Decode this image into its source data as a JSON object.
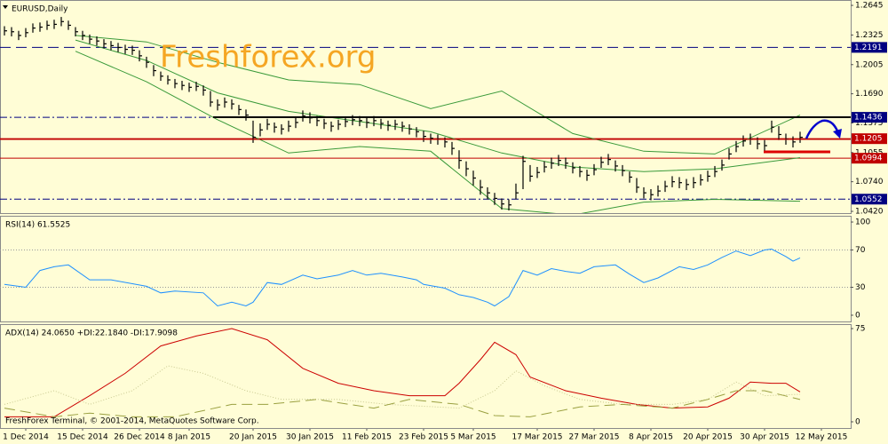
{
  "chart_data": [
    {
      "type": "ohlc",
      "title": "EURUSD,Daily",
      "watermark": "Freshforex.org",
      "xlim": [
        -0.625,
        119.125
      ],
      "xticks": [
        {
          "value": 3,
          "label": "1 Dec 2014"
        },
        {
          "value": 11,
          "label": "15 Dec 2014"
        },
        {
          "value": 19,
          "label": "26 Dec 2014"
        },
        {
          "value": 26,
          "label": "8 Jan 2015"
        },
        {
          "value": 35,
          "label": "20 Jan 2015"
        },
        {
          "value": 43,
          "label": "30 Jan 2015"
        },
        {
          "value": 51,
          "label": "11 Feb 2015"
        },
        {
          "value": 59,
          "label": "23 Feb 2015"
        },
        {
          "value": 66,
          "label": "5 Mar 2015"
        },
        {
          "value": 75,
          "label": "17 Mar 2015"
        },
        {
          "value": 83,
          "label": "27 Mar 2015"
        },
        {
          "value": 91,
          "label": "8 Apr 2015"
        },
        {
          "value": 99,
          "label": "20 Apr 2015"
        },
        {
          "value": 107,
          "label": "30 Apr 2015"
        },
        {
          "value": 115,
          "label": "12 May 2015"
        }
      ],
      "ylim": [
        1.0401,
        1.2703
      ],
      "yticks": [
        1.2645,
        1.2325,
        1.2005,
        {
          "value": 1.169,
          "label": "1.1690"
        },
        1.1375,
        1.1055,
        {
          "value": 1.074,
          "label": "1.0740"
        },
        {
          "value": 1.042,
          "label": "1.0420"
        }
      ],
      "color": "#000000",
      "x": [
        0,
        1,
        2,
        3,
        4,
        5,
        6,
        7,
        8,
        9,
        10,
        11,
        12,
        13,
        14,
        15,
        16,
        17,
        18,
        19,
        20,
        21,
        22,
        23,
        24,
        25,
        26,
        27,
        28,
        29,
        30,
        31,
        32,
        33,
        34,
        35,
        36,
        37,
        38,
        39,
        40,
        41,
        42,
        43,
        44,
        45,
        46,
        47,
        48,
        49,
        50,
        51,
        52,
        53,
        54,
        55,
        56,
        57,
        58,
        59,
        60,
        61,
        62,
        63,
        64,
        65,
        66,
        67,
        68,
        69,
        70,
        71,
        72,
        73,
        74,
        75,
        76,
        77,
        78,
        79,
        80,
        81,
        82,
        83,
        84,
        85,
        86,
        87,
        88,
        89,
        90,
        91,
        92,
        93,
        94,
        95,
        96,
        97,
        98,
        99,
        100,
        101,
        102,
        103,
        104,
        105,
        106,
        107,
        108,
        109,
        110,
        111,
        112
      ],
      "high": [
        1.242,
        1.241,
        1.237,
        1.24,
        1.245,
        1.246,
        1.248,
        1.249,
        1.252,
        1.248,
        1.241,
        1.237,
        1.233,
        1.231,
        1.228,
        1.226,
        1.224,
        1.222,
        1.221,
        1.216,
        1.209,
        1.2,
        1.193,
        1.189,
        1.185,
        1.183,
        1.181,
        1.182,
        1.178,
        1.172,
        1.163,
        1.165,
        1.163,
        1.157,
        1.152,
        1.14,
        1.137,
        1.142,
        1.138,
        1.136,
        1.14,
        1.143,
        1.151,
        1.149,
        1.145,
        1.142,
        1.139,
        1.141,
        1.144,
        1.146,
        1.145,
        1.143,
        1.145,
        1.142,
        1.14,
        1.141,
        1.139,
        1.136,
        1.133,
        1.129,
        1.126,
        1.125,
        1.122,
        1.117,
        1.108,
        1.096,
        1.086,
        1.076,
        1.068,
        1.062,
        1.056,
        1.055,
        1.072,
        1.102,
        1.092,
        1.09,
        1.096,
        1.1,
        1.103,
        1.1,
        1.095,
        1.091,
        1.087,
        1.093,
        1.101,
        1.104,
        1.097,
        1.092,
        1.085,
        1.078,
        1.068,
        1.066,
        1.07,
        1.075,
        1.08,
        1.079,
        1.077,
        1.079,
        1.082,
        1.086,
        1.091,
        1.098,
        1.11,
        1.118,
        1.124,
        1.126,
        1.122,
        1.119,
        1.14,
        1.134,
        1.126,
        1.123,
        1.128
      ],
      "low": [
        1.232,
        1.231,
        1.227,
        1.23,
        1.235,
        1.236,
        1.238,
        1.239,
        1.242,
        1.238,
        1.231,
        1.227,
        1.223,
        1.221,
        1.218,
        1.216,
        1.214,
        1.212,
        1.211,
        1.204,
        1.197,
        1.188,
        1.183,
        1.179,
        1.175,
        1.173,
        1.171,
        1.172,
        1.167,
        1.155,
        1.151,
        1.154,
        1.152,
        1.146,
        1.14,
        1.116,
        1.123,
        1.13,
        1.127,
        1.125,
        1.128,
        1.132,
        1.139,
        1.137,
        1.134,
        1.131,
        1.128,
        1.13,
        1.133,
        1.135,
        1.134,
        1.132,
        1.134,
        1.131,
        1.129,
        1.13,
        1.128,
        1.125,
        1.122,
        1.117,
        1.115,
        1.114,
        1.111,
        1.103,
        1.088,
        1.08,
        1.07,
        1.06,
        1.055,
        1.049,
        1.044,
        1.043,
        1.055,
        1.066,
        1.074,
        1.078,
        1.084,
        1.088,
        1.091,
        1.088,
        1.083,
        1.079,
        1.075,
        1.081,
        1.089,
        1.092,
        1.085,
        1.08,
        1.073,
        1.062,
        1.056,
        1.054,
        1.058,
        1.063,
        1.068,
        1.067,
        1.065,
        1.067,
        1.07,
        1.074,
        1.079,
        1.086,
        1.098,
        1.106,
        1.112,
        1.114,
        1.109,
        1.107,
        1.127,
        1.119,
        1.114,
        1.111,
        1.116
      ],
      "close": [
        1.237,
        1.236,
        1.232,
        1.235,
        1.24,
        1.241,
        1.243,
        1.244,
        1.247,
        1.243,
        1.236,
        1.232,
        1.228,
        1.226,
        1.223,
        1.221,
        1.219,
        1.217,
        1.216,
        1.21,
        1.203,
        1.194,
        1.188,
        1.184,
        1.18,
        1.178,
        1.176,
        1.177,
        1.173,
        1.16,
        1.157,
        1.16,
        1.158,
        1.152,
        1.146,
        1.122,
        1.13,
        1.136,
        1.133,
        1.131,
        1.134,
        1.138,
        1.145,
        1.143,
        1.14,
        1.137,
        1.134,
        1.136,
        1.139,
        1.141,
        1.14,
        1.138,
        1.14,
        1.137,
        1.135,
        1.136,
        1.134,
        1.131,
        1.128,
        1.123,
        1.121,
        1.12,
        1.117,
        1.11,
        1.097,
        1.088,
        1.078,
        1.068,
        1.062,
        1.056,
        1.05,
        1.049,
        1.062,
        1.096,
        1.08,
        1.084,
        1.09,
        1.094,
        1.097,
        1.094,
        1.089,
        1.085,
        1.081,
        1.087,
        1.095,
        1.098,
        1.091,
        1.086,
        1.079,
        1.068,
        1.062,
        1.06,
        1.064,
        1.069,
        1.074,
        1.073,
        1.071,
        1.073,
        1.076,
        1.08,
        1.085,
        1.092,
        1.104,
        1.112,
        1.118,
        1.12,
        1.115,
        1.113,
        1.133,
        1.125,
        1.12,
        1.117,
        1.122
      ],
      "overlays": [
        {
          "color": "#3a9a3a",
          "x": [
            10,
            20,
            30,
            40,
            50,
            60,
            70,
            80,
            90,
            100,
            112
          ],
          "values": [
            1.232,
            1.225,
            1.203,
            1.184,
            1.179,
            1.153,
            1.172,
            1.126,
            1.107,
            1.104,
            1.146
          ]
        },
        {
          "color": "#3a9a3a",
          "x": [
            10,
            20,
            30,
            40,
            50,
            60,
            70,
            80,
            90,
            100,
            112
          ],
          "values": [
            1.227,
            1.205,
            1.17,
            1.15,
            1.139,
            1.128,
            1.105,
            1.09,
            1.085,
            1.088,
            1.1
          ]
        },
        {
          "color": "#3a9a3a",
          "x": [
            10,
            20,
            30,
            40,
            50,
            60,
            70,
            80,
            90,
            100,
            112
          ],
          "values": [
            1.215,
            1.182,
            1.141,
            1.105,
            1.112,
            1.107,
            1.045,
            1.038,
            1.052,
            1.055,
            1.053
          ]
        }
      ],
      "level_labels": true,
      "levels": [
        {
          "value": 1.2191,
          "color": "#000080",
          "style": "dash"
        },
        {
          "value": 1.1436,
          "color": "#000080",
          "style": "dashdot"
        },
        {
          "value": 1.1205,
          "color": "#c00000",
          "style": "solid"
        },
        {
          "value": 1.0994,
          "color": "#c00000",
          "style": "solid"
        },
        {
          "value": 1.0552,
          "color": "#000080",
          "style": "dashdot"
        }
      ]
    },
    {
      "type": "line",
      "title": "RSI(14) 61.5525",
      "ylim": [
        -6.7,
        106.7
      ],
      "yticks": [
        100,
        70,
        30,
        0
      ],
      "levels": [
        {
          "value": 70,
          "color": "#999999",
          "style": "dot"
        },
        {
          "value": 30,
          "color": "#999999",
          "style": "dot"
        }
      ],
      "series": [
        {
          "color": "#1e90ff",
          "style": "solid",
          "x": [
            0,
            3,
            5,
            7,
            9,
            12,
            15,
            20,
            22,
            24,
            28,
            30,
            32,
            34,
            35,
            37,
            39,
            42,
            44,
            47,
            49,
            51,
            53,
            56,
            58,
            59,
            62,
            64,
            66,
            68,
            69,
            71,
            73,
            75,
            77,
            79,
            81,
            83,
            86,
            88,
            90,
            92,
            95,
            97,
            99,
            101,
            103,
            105,
            107,
            108,
            110,
            111,
            112
          ],
          "values": [
            33,
            30,
            48,
            52,
            54,
            38,
            38,
            31,
            24,
            26,
            24,
            10,
            14,
            10,
            14,
            35,
            33,
            43,
            39,
            43,
            48,
            43,
            45,
            41,
            38,
            33,
            29,
            22,
            19,
            14,
            10,
            20,
            48,
            43,
            50,
            47,
            45,
            52,
            54,
            44,
            35,
            40,
            52,
            49,
            54,
            62,
            69,
            64,
            70,
            71,
            63,
            58,
            61.5525
          ]
        }
      ]
    },
    {
      "type": "line",
      "title": "ADX(14) 24.0650 +DI:22.1840 -DI:17.9098",
      "annotation": "FreshForex Terminal, © 2001-2014, MetaQuotes Software Corp.",
      "ylim": [
        -5,
        78.6
      ],
      "yticks": [
        75,
        0
      ],
      "series": [
        {
          "color": "#cc0000",
          "style": "solid",
          "x": [
            0,
            7,
            12,
            17,
            22,
            27,
            32,
            37,
            42,
            47,
            52,
            57,
            62,
            64,
            67,
            69,
            72,
            74,
            79,
            84,
            89,
            94,
            99,
            102,
            105,
            108,
            110,
            112
          ],
          "values": [
            4,
            4,
            21,
            39,
            61,
            69,
            75,
            66,
            43,
            31,
            25,
            21,
            21,
            31,
            50,
            64,
            54,
            36,
            25,
            19,
            14,
            11,
            12,
            19,
            32,
            31,
            31,
            24.065
          ]
        },
        {
          "color": "#c8c890",
          "style": "dot",
          "x": [
            0,
            7,
            12,
            18,
            23,
            28,
            34,
            39,
            47,
            54,
            64,
            69,
            72,
            76,
            81,
            87,
            94,
            99,
            103,
            107,
            112
          ],
          "values": [
            14,
            25,
            14,
            25,
            45,
            39,
            25,
            18,
            18,
            14,
            11,
            25,
            41,
            29,
            18,
            14,
            14,
            18,
            32,
            21,
            22.184
          ]
        },
        {
          "color": "#9aa040",
          "style": "dash",
          "x": [
            0,
            7,
            12,
            18,
            24,
            32,
            37,
            44,
            52,
            57,
            64,
            69,
            74,
            81,
            87,
            94,
            99,
            103,
            107,
            112
          ],
          "values": [
            11,
            4,
            7,
            4,
            4,
            14,
            14,
            18,
            11,
            18,
            14,
            5,
            4,
            12,
            14,
            11,
            18,
            25,
            25,
            17.9098
          ]
        }
      ]
    }
  ]
}
